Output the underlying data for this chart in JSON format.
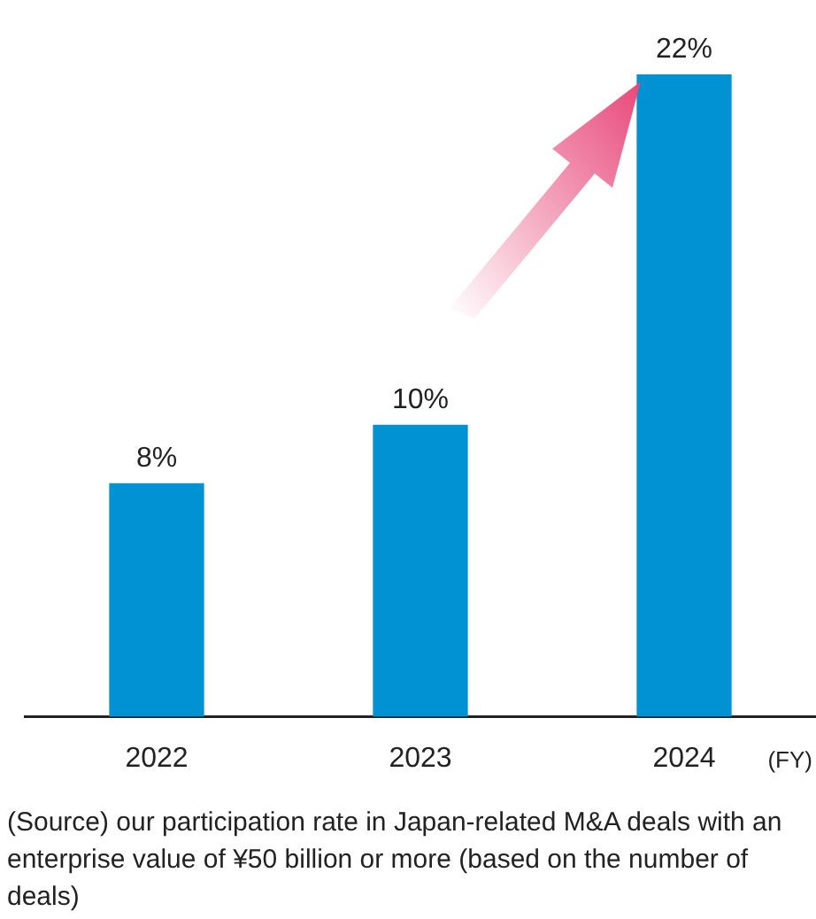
{
  "chart_data": {
    "type": "bar",
    "categories": [
      "2022",
      "2023",
      "2024"
    ],
    "values": [
      8,
      10,
      22
    ],
    "color": "#0092d2",
    "value_labels": [
      "8%",
      "10%",
      "22%"
    ],
    "ylim": [
      0,
      22
    ],
    "tick_labels": "x",
    "grid": false,
    "legend": false,
    "xlabel": "(FY)",
    "annotations": [
      "(Source) our participation rate in Japan-related M&A deals with an enterprise value of ¥50 billion or more (based on the number of deals)"
    ]
  }
}
